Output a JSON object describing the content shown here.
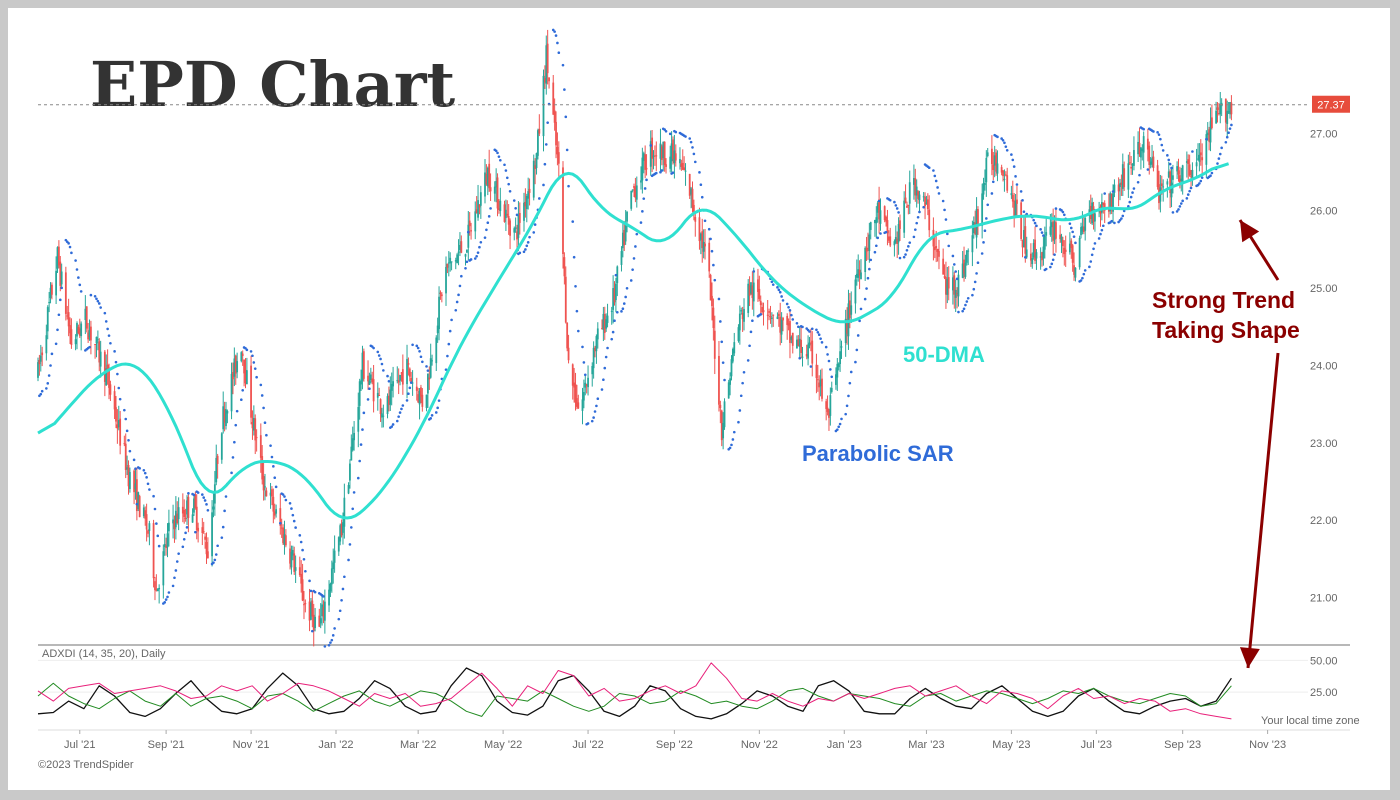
{
  "title": "EPD Chart",
  "price_tag": "27.37",
  "indicator_label": "ADXDI (14, 35, 20), Daily",
  "time_zone_note": "Your local time zone",
  "copyright": "©2023 TrendSpider",
  "annotations": {
    "dma": "50-DMA",
    "sar": "Parabolic SAR",
    "trend_line1": "Strong Trend",
    "trend_line2": "Taking Shape"
  },
  "colors": {
    "up": "#26a69a",
    "down": "#ef5350",
    "dma": "#2fe0d0",
    "sar": "#2f6bd8",
    "adx": "#111111",
    "plus_di": "#228b22",
    "minus_di": "#e8207a",
    "arrow": "#8b0000",
    "price_tag_bg": "#e74c3c"
  },
  "chart_data": [
    {
      "type": "candlestick",
      "x_ticks": [
        "Jul '21",
        "Sep '21",
        "Nov '21",
        "Jan '22",
        "Mar '22",
        "May '22",
        "Jul '22",
        "Sep '22",
        "Nov '22",
        "Jan '23",
        "Mar '23",
        "May '23",
        "Jul '23",
        "Sep '23",
        "Nov '23"
      ],
      "y_ticks": [
        "21.00",
        "22.00",
        "23.00",
        "24.00",
        "25.00",
        "26.00",
        "27.00"
      ],
      "ylim": [
        20.4,
        28.0
      ],
      "last_price": 27.37,
      "price_path": [
        [
          "2021-06-01",
          23.9
        ],
        [
          "2021-06-15",
          25.4
        ],
        [
          "2021-06-25",
          24.3
        ],
        [
          "2021-07-05",
          24.6
        ],
        [
          "2021-07-20",
          23.9
        ],
        [
          "2021-08-05",
          22.6
        ],
        [
          "2021-08-20",
          21.8
        ],
        [
          "2021-08-25",
          21.1
        ],
        [
          "2021-09-05",
          22.0
        ],
        [
          "2021-09-20",
          22.2
        ],
        [
          "2021-10-01",
          21.6
        ],
        [
          "2021-10-10",
          23.2
        ],
        [
          "2021-10-25",
          24.3
        ],
        [
          "2021-11-02",
          23.3
        ],
        [
          "2021-11-10",
          22.5
        ],
        [
          "2021-11-20",
          22.0
        ],
        [
          "2021-12-01",
          21.5
        ],
        [
          "2021-12-10",
          20.9
        ],
        [
          "2021-12-20",
          20.6
        ],
        [
          "2022-01-05",
          21.9
        ],
        [
          "2022-01-20",
          24.0
        ],
        [
          "2022-02-05",
          23.4
        ],
        [
          "2022-02-20",
          24.0
        ],
        [
          "2022-03-05",
          23.5
        ],
        [
          "2022-03-20",
          25.2
        ],
        [
          "2022-04-05",
          25.6
        ],
        [
          "2022-04-20",
          26.5
        ],
        [
          "2022-05-01",
          26.0
        ],
        [
          "2022-05-10",
          25.7
        ],
        [
          "2022-05-25",
          26.7
        ],
        [
          "2022-06-01",
          28.0
        ],
        [
          "2022-06-10",
          26.5
        ],
        [
          "2022-06-17",
          24.0
        ],
        [
          "2022-06-25",
          23.4
        ],
        [
          "2022-07-05",
          24.2
        ],
        [
          "2022-07-20",
          24.9
        ],
        [
          "2022-08-01",
          26.2
        ],
        [
          "2022-08-15",
          26.8
        ],
        [
          "2022-09-01",
          26.7
        ],
        [
          "2022-09-10",
          26.4
        ],
        [
          "2022-09-25",
          25.3
        ],
        [
          "2022-10-01",
          24.0
        ],
        [
          "2022-10-05",
          23.2
        ],
        [
          "2022-10-15",
          24.4
        ],
        [
          "2022-10-25",
          25.0
        ],
        [
          "2022-11-10",
          24.7
        ],
        [
          "2022-11-25",
          24.3
        ],
        [
          "2022-12-10",
          24.1
        ],
        [
          "2022-12-20",
          23.3
        ],
        [
          "2022-12-28",
          24.0
        ],
        [
          "2023-01-10",
          25.2
        ],
        [
          "2023-01-25",
          26.0
        ],
        [
          "2023-02-05",
          25.5
        ],
        [
          "2023-02-20",
          26.4
        ],
        [
          "2023-03-01",
          26.0
        ],
        [
          "2023-03-15",
          25.0
        ],
        [
          "2023-03-25",
          25.1
        ],
        [
          "2023-04-05",
          25.8
        ],
        [
          "2023-04-15",
          26.7
        ],
        [
          "2023-04-25",
          26.6
        ],
        [
          "2023-05-10",
          25.6
        ],
        [
          "2023-05-20",
          25.4
        ],
        [
          "2023-06-01",
          25.8
        ],
        [
          "2023-06-15",
          25.3
        ],
        [
          "2023-06-25",
          26.0
        ],
        [
          "2023-07-10",
          26.1
        ],
        [
          "2023-07-25",
          26.6
        ],
        [
          "2023-08-05",
          26.9
        ],
        [
          "2023-08-15",
          26.2
        ],
        [
          "2023-08-25",
          26.4
        ],
        [
          "2023-09-05",
          26.5
        ],
        [
          "2023-09-15",
          26.7
        ],
        [
          "2023-09-25",
          27.2
        ],
        [
          "2023-10-06",
          27.37
        ]
      ],
      "dma_path": [
        [
          "2021-06-01",
          23.0
        ],
        [
          "2021-06-20",
          23.4
        ],
        [
          "2021-07-15",
          23.9
        ],
        [
          "2021-08-10",
          24.1
        ],
        [
          "2021-09-05",
          23.4
        ],
        [
          "2021-10-01",
          22.15
        ],
        [
          "2021-10-25",
          22.7
        ],
        [
          "2021-11-15",
          22.8
        ],
        [
          "2021-12-10",
          22.6
        ],
        [
          "2022-01-05",
          21.9
        ],
        [
          "2022-02-01",
          22.3
        ],
        [
          "2022-03-01",
          23.1
        ],
        [
          "2022-04-01",
          24.3
        ],
        [
          "2022-05-01",
          25.2
        ],
        [
          "2022-05-25",
          25.9
        ],
        [
          "2022-06-15",
          26.7
        ],
        [
          "2022-07-10",
          26.0
        ],
        [
          "2022-08-01",
          25.8
        ],
        [
          "2022-08-25",
          25.5
        ],
        [
          "2022-09-20",
          26.15
        ],
        [
          "2022-10-15",
          25.7
        ],
        [
          "2022-11-10",
          25.1
        ],
        [
          "2022-12-05",
          24.75
        ],
        [
          "2023-01-01",
          24.5
        ],
        [
          "2023-02-05",
          24.85
        ],
        [
          "2023-03-01",
          25.7
        ],
        [
          "2023-03-25",
          25.75
        ],
        [
          "2023-04-25",
          25.9
        ],
        [
          "2023-05-15",
          25.95
        ],
        [
          "2023-06-15",
          25.85
        ],
        [
          "2023-07-10",
          26.1
        ],
        [
          "2023-07-25",
          25.95
        ],
        [
          "2023-08-20",
          26.3
        ],
        [
          "2023-09-10",
          26.4
        ],
        [
          "2023-10-06",
          26.7
        ]
      ]
    },
    {
      "type": "line",
      "label": "ADXDI (14, 35, 20), Daily",
      "y_ticks": [
        "25.00",
        "50.00"
      ],
      "ylim": [
        0,
        55
      ],
      "series": [
        {
          "values": [
            8,
            9,
            18,
            12,
            30,
            22,
            9,
            6,
            12,
            24,
            34,
            20,
            10,
            8,
            12,
            28,
            40,
            30,
            12,
            8,
            10,
            20,
            34,
            28,
            14,
            8,
            10,
            30,
            44,
            38,
            18,
            9,
            7,
            14,
            34,
            38,
            26,
            10,
            6,
            14,
            30,
            26,
            12,
            6,
            4,
            8,
            16,
            26,
            22,
            14,
            10,
            30,
            34,
            26,
            10,
            8,
            8,
            20,
            28,
            20,
            14,
            12,
            24,
            30,
            20,
            10,
            6,
            10,
            22,
            28,
            18,
            10,
            8,
            14,
            18,
            20,
            14,
            18,
            36
          ]
        },
        {
          "values": [
            22,
            32,
            22,
            16,
            12,
            20,
            26,
            18,
            14,
            24,
            14,
            20,
            22,
            18,
            12,
            22,
            24,
            18,
            10,
            16,
            22,
            26,
            18,
            14,
            20,
            26,
            24,
            18,
            10,
            6,
            22,
            20,
            18,
            26,
            20,
            14,
            10,
            14,
            24,
            22,
            16,
            18,
            26,
            22,
            16,
            18,
            14,
            12,
            18,
            26,
            28,
            22,
            18,
            24,
            22,
            20,
            16,
            14,
            22,
            24,
            18,
            22,
            26,
            24,
            20,
            16,
            20,
            26,
            24,
            28,
            22,
            18,
            16,
            20,
            24,
            22,
            14,
            16,
            30
          ]
        },
        {
          "values": [
            26,
            18,
            28,
            30,
            32,
            24,
            26,
            28,
            30,
            26,
            20,
            22,
            30,
            26,
            30,
            18,
            24,
            32,
            30,
            26,
            20,
            14,
            24,
            20,
            24,
            14,
            16,
            20,
            30,
            40,
            28,
            14,
            30,
            24,
            42,
            38,
            22,
            28,
            18,
            20,
            26,
            30,
            24,
            30,
            48,
            36,
            20,
            18,
            24,
            18,
            14,
            20,
            18,
            24,
            20,
            24,
            28,
            30,
            22,
            26,
            30,
            22,
            16,
            26,
            24,
            20,
            12,
            22,
            28,
            20,
            22,
            16,
            20,
            18,
            10,
            12,
            8,
            6,
            4
          ]
        }
      ]
    }
  ]
}
